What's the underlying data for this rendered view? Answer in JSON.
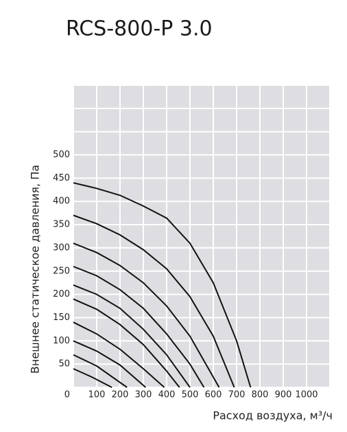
{
  "chart_data": {
    "type": "line",
    "title": "RCS-800-P 3.0",
    "x_label": "Расход воздуха, м³/ч",
    "y_label": "Внешнее статическое давления, Па",
    "color": "#111111",
    "grid": true,
    "xlim": [
      0,
      1100
    ],
    "ylim": [
      0,
      650
    ],
    "xticks": [
      100,
      200,
      300,
      400,
      500,
      600,
      700,
      800,
      900,
      1000
    ],
    "yticks": [
      0,
      50,
      100,
      150,
      200,
      250,
      300,
      350,
      400,
      450,
      500
    ],
    "series": [
      {
        "x": [
          0,
          100,
          200,
          300,
          400,
          500,
          600,
          700,
          760
        ],
        "values": [
          440,
          428,
          413,
          390,
          364,
          310,
          225,
          100,
          0
        ]
      },
      {
        "x": [
          0,
          100,
          200,
          300,
          400,
          500,
          600,
          690
        ],
        "values": [
          370,
          352,
          328,
          296,
          255,
          195,
          110,
          0
        ]
      },
      {
        "x": [
          0,
          100,
          200,
          300,
          400,
          500,
          625
        ],
        "values": [
          310,
          290,
          262,
          225,
          175,
          110,
          0
        ]
      },
      {
        "x": [
          0,
          100,
          200,
          300,
          400,
          500,
          560
        ],
        "values": [
          260,
          240,
          210,
          170,
          115,
          50,
          0
        ]
      },
      {
        "x": [
          0,
          100,
          200,
          300,
          400,
          500
        ],
        "values": [
          220,
          200,
          170,
          125,
          70,
          0
        ]
      },
      {
        "x": [
          0,
          100,
          200,
          300,
          400,
          455
        ],
        "values": [
          190,
          168,
          135,
          92,
          35,
          0
        ]
      },
      {
        "x": [
          0,
          100,
          200,
          300,
          390
        ],
        "values": [
          140,
          115,
          82,
          40,
          0
        ]
      },
      {
        "x": [
          0,
          100,
          200,
          310
        ],
        "values": [
          100,
          78,
          48,
          0
        ]
      },
      {
        "x": [
          0,
          100,
          230
        ],
        "values": [
          70,
          46,
          0
        ]
      },
      {
        "x": [
          0,
          80,
          165
        ],
        "values": [
          40,
          22,
          0
        ]
      }
    ]
  }
}
